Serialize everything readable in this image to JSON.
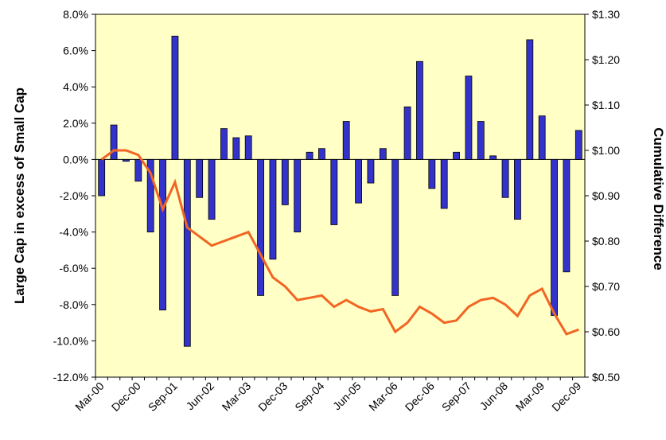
{
  "chart_data": {
    "type": "bar-line",
    "y_label": "Large Cap in excess of Small Cap",
    "y2_label": "Cumulative Difference",
    "categories": [
      "Mar-00",
      null,
      null,
      "Dec-00",
      null,
      null,
      "Sep-01",
      null,
      null,
      "Jun-02",
      null,
      null,
      "Mar-03",
      null,
      null,
      "Dec-03",
      null,
      null,
      "Sep-04",
      null,
      null,
      "Jun-05",
      null,
      null,
      "Mar-06",
      null,
      null,
      "Dec-06",
      null,
      null,
      "Sep-07",
      null,
      null,
      "Jun-08",
      null,
      null,
      "Mar-09",
      null,
      null,
      "Dec-09"
    ],
    "series": [
      {
        "type": "bar",
        "color": "#3333cc",
        "values": [
          -2.0,
          1.9,
          -0.1,
          -1.2,
          -4.0,
          -8.3,
          6.8,
          -10.3,
          -2.1,
          -3.3,
          1.7,
          1.2,
          1.3,
          -7.5,
          -5.5,
          -2.5,
          -4.0,
          0.4,
          0.6,
          -3.6,
          2.1,
          -2.4,
          -1.3,
          0.6,
          -7.5,
          2.9,
          5.4,
          -1.6,
          -2.7,
          0.4,
          4.6,
          2.1,
          0.2,
          -2.1,
          -3.3,
          6.6,
          2.4,
          -8.6,
          -6.2,
          1.6
        ]
      },
      {
        "type": "line",
        "axis": "y2",
        "color": "#f26522",
        "values": [
          0.98,
          1.0,
          1.0,
          0.99,
          0.95,
          0.87,
          0.93,
          0.83,
          0.81,
          0.79,
          0.8,
          0.81,
          0.82,
          0.77,
          0.72,
          0.7,
          0.67,
          0.675,
          0.68,
          0.655,
          0.67,
          0.655,
          0.645,
          0.65,
          0.6,
          0.62,
          0.655,
          0.64,
          0.62,
          0.625,
          0.655,
          0.67,
          0.675,
          0.66,
          0.635,
          0.68,
          0.695,
          0.64,
          0.595,
          0.605
        ]
      }
    ],
    "ylim": [
      -12,
      8
    ],
    "yticks": [
      {
        "value": -12,
        "label": "-12.0%"
      },
      {
        "value": -10,
        "label": "-10.0%"
      },
      {
        "value": -8,
        "label": "-8.0%"
      },
      {
        "value": -6,
        "label": "-6.0%"
      },
      {
        "value": -4,
        "label": "-4.0%"
      },
      {
        "value": -2,
        "label": "-2.0%"
      },
      {
        "value": 0,
        "label": "0.0%"
      },
      {
        "value": 2,
        "label": "2.0%"
      },
      {
        "value": 4,
        "label": "4.0%"
      },
      {
        "value": 6,
        "label": "6.0%"
      },
      {
        "value": 8,
        "label": "8.0%"
      }
    ],
    "y2lim": [
      0.5,
      1.3
    ],
    "y2ticks": [
      {
        "value": 0.5,
        "label": "$0.50"
      },
      {
        "value": 0.6,
        "label": "$0.60"
      },
      {
        "value": 0.7,
        "label": "$0.70"
      },
      {
        "value": 0.8,
        "label": "$0.80"
      },
      {
        "value": 0.9,
        "label": "$0.90"
      },
      {
        "value": 1.0,
        "label": "$1.00"
      },
      {
        "value": 1.1,
        "label": "$1.10"
      },
      {
        "value": 1.2,
        "label": "$1.20"
      },
      {
        "value": 1.3,
        "label": "$1.30"
      }
    ]
  }
}
